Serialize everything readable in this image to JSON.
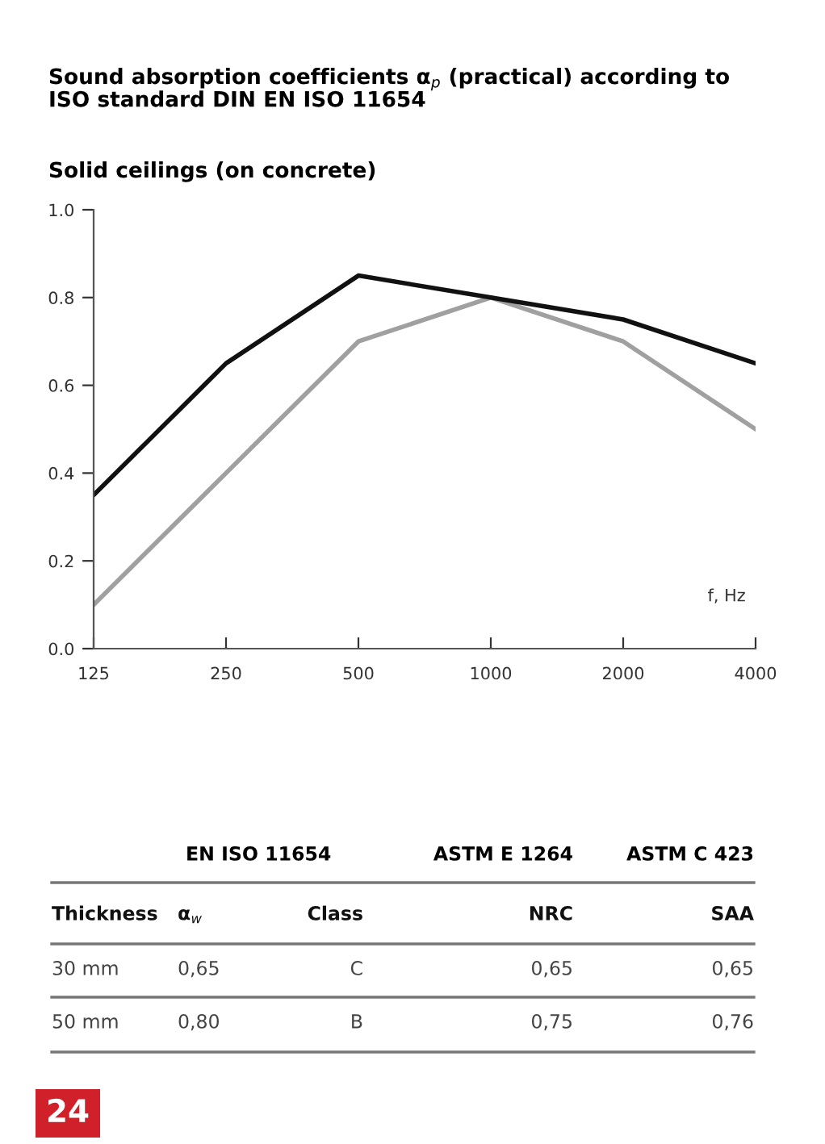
{
  "chart_data": {
    "type": "line",
    "title": "Sound absorption coefficients α$_{p}$ (practical) according to\nISO standard DIN EN ISO 11654",
    "subtitle": "Solid ceilings (on concrete)",
    "xlabel": "f, Hz",
    "categories": [
      "125",
      "250",
      "500",
      "1000",
      "2000",
      "4000"
    ],
    "series": [
      {
        "color": "#a0a0a0",
        "values": [
          0.1,
          0.4,
          0.7,
          0.8,
          0.7,
          0.5
        ]
      },
      {
        "color": "#111111",
        "values": [
          0.35,
          0.65,
          0.85,
          0.8,
          0.75,
          0.65
        ]
      }
    ],
    "ylim": [
      0,
      1.0
    ],
    "yticks": [
      {
        "value": 0,
        "label": "0.0"
      },
      {
        "value": 0.2,
        "label": "0.2"
      },
      {
        "value": 0.4,
        "label": "0.4"
      },
      {
        "value": 0.6,
        "label": "0.6"
      },
      {
        "value": 0.8,
        "label": "0.8"
      },
      {
        "value": 1.0,
        "label": "1.0"
      }
    ],
    "grid": false,
    "legend": false,
    "marker": "none",
    "line_style": "solid",
    "annotations": [
      "EN ISO 11654",
      "ASTM E 1264",
      "ASTM C 423",
      "Thickness",
      "α$_{w}$",
      "Class",
      "NRC",
      "SAA",
      "30 mm",
      "0,65",
      "C",
      "0,65",
      "0,65",
      "50 mm",
      "0,80",
      "B",
      "0,75",
      "0,76",
      "24"
    ]
  }
}
